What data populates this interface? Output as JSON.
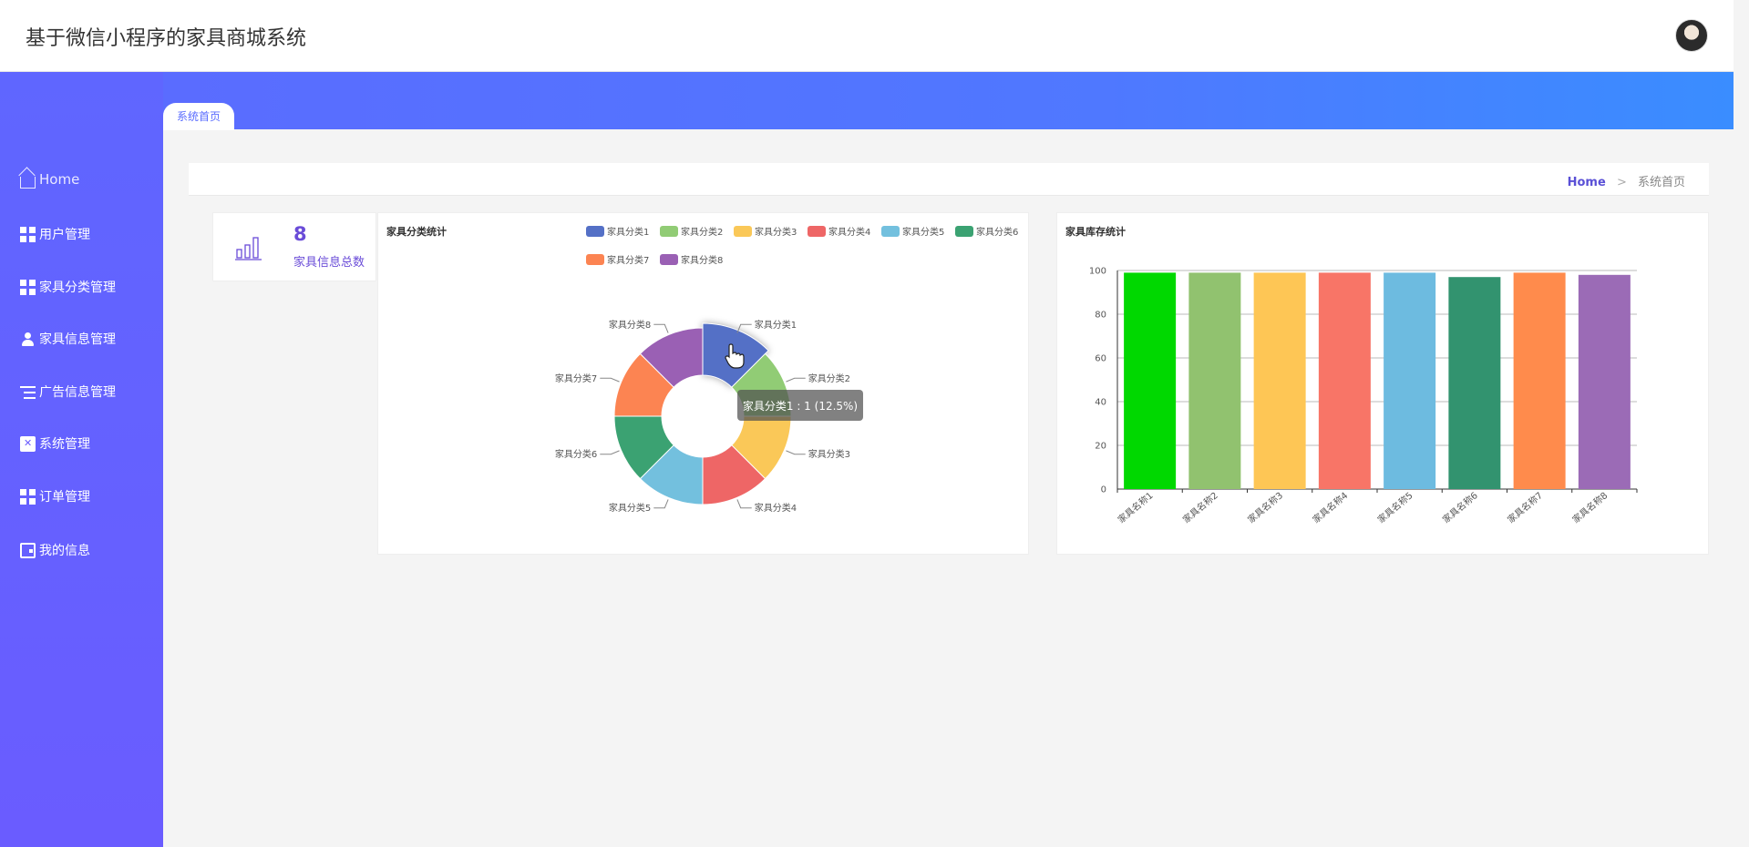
{
  "header": {
    "title": "基于微信小程序的家具商城系统"
  },
  "sidebar": {
    "items": [
      {
        "label": "Home",
        "icon": "home-icon"
      },
      {
        "label": "用户管理",
        "icon": "grid-icon"
      },
      {
        "label": "家具分类管理",
        "icon": "grid-icon"
      },
      {
        "label": "家具信息管理",
        "icon": "user-icon"
      },
      {
        "label": "广告信息管理",
        "icon": "list-icon"
      },
      {
        "label": "系统管理",
        "icon": "clipboard-icon"
      },
      {
        "label": "订单管理",
        "icon": "grid-icon"
      },
      {
        "label": "我的信息",
        "icon": "wallet-icon"
      }
    ]
  },
  "tabs": [
    {
      "label": "系统首页"
    }
  ],
  "breadcrumb": {
    "home": "Home",
    "separator": ">",
    "current": "系统首页"
  },
  "stat": {
    "value": "8",
    "label": "家具信息总数",
    "icon": "bar-chart-icon"
  },
  "tooltip": {
    "text": "家具分类1 : 1 (12.5%)"
  },
  "colors": {
    "accent": "#6a4cd8",
    "sidebar": "#6462ff",
    "band_start": "#5a6cff",
    "band_end": "#3a8dff"
  },
  "chart_data": [
    {
      "type": "pie",
      "title": "家具分类统计",
      "variant": "donut",
      "legend_position": "top-right",
      "categories": [
        "家具分类1",
        "家具分类2",
        "家具分类3",
        "家具分类4",
        "家具分类5",
        "家具分类6",
        "家具分类7",
        "家具分类8"
      ],
      "values": [
        1,
        1,
        1,
        1,
        1,
        1,
        1,
        1
      ],
      "colors": [
        "#5470c6",
        "#91cc75",
        "#fac858",
        "#ee6666",
        "#73c0de",
        "#3ba272",
        "#fc8452",
        "#9a60b4"
      ],
      "highlighted": "家具分类1"
    },
    {
      "type": "bar",
      "title": "家具库存统计",
      "categories": [
        "家具名称1",
        "家具名称2",
        "家具名称3",
        "家具名称4",
        "家具名称5",
        "家具名称6",
        "家具名称7",
        "家具名称8"
      ],
      "values": [
        99,
        99,
        99,
        99,
        99,
        97,
        99,
        98
      ],
      "colors": [
        "#00d800",
        "#91c26f",
        "#fec655",
        "#f87567",
        "#6dbbe0",
        "#32936f",
        "#ff8b4c",
        "#9b6bb6"
      ],
      "ylim": [
        0,
        100
      ],
      "yticks": [
        0,
        20,
        40,
        60,
        80,
        100
      ],
      "grid": true
    }
  ]
}
